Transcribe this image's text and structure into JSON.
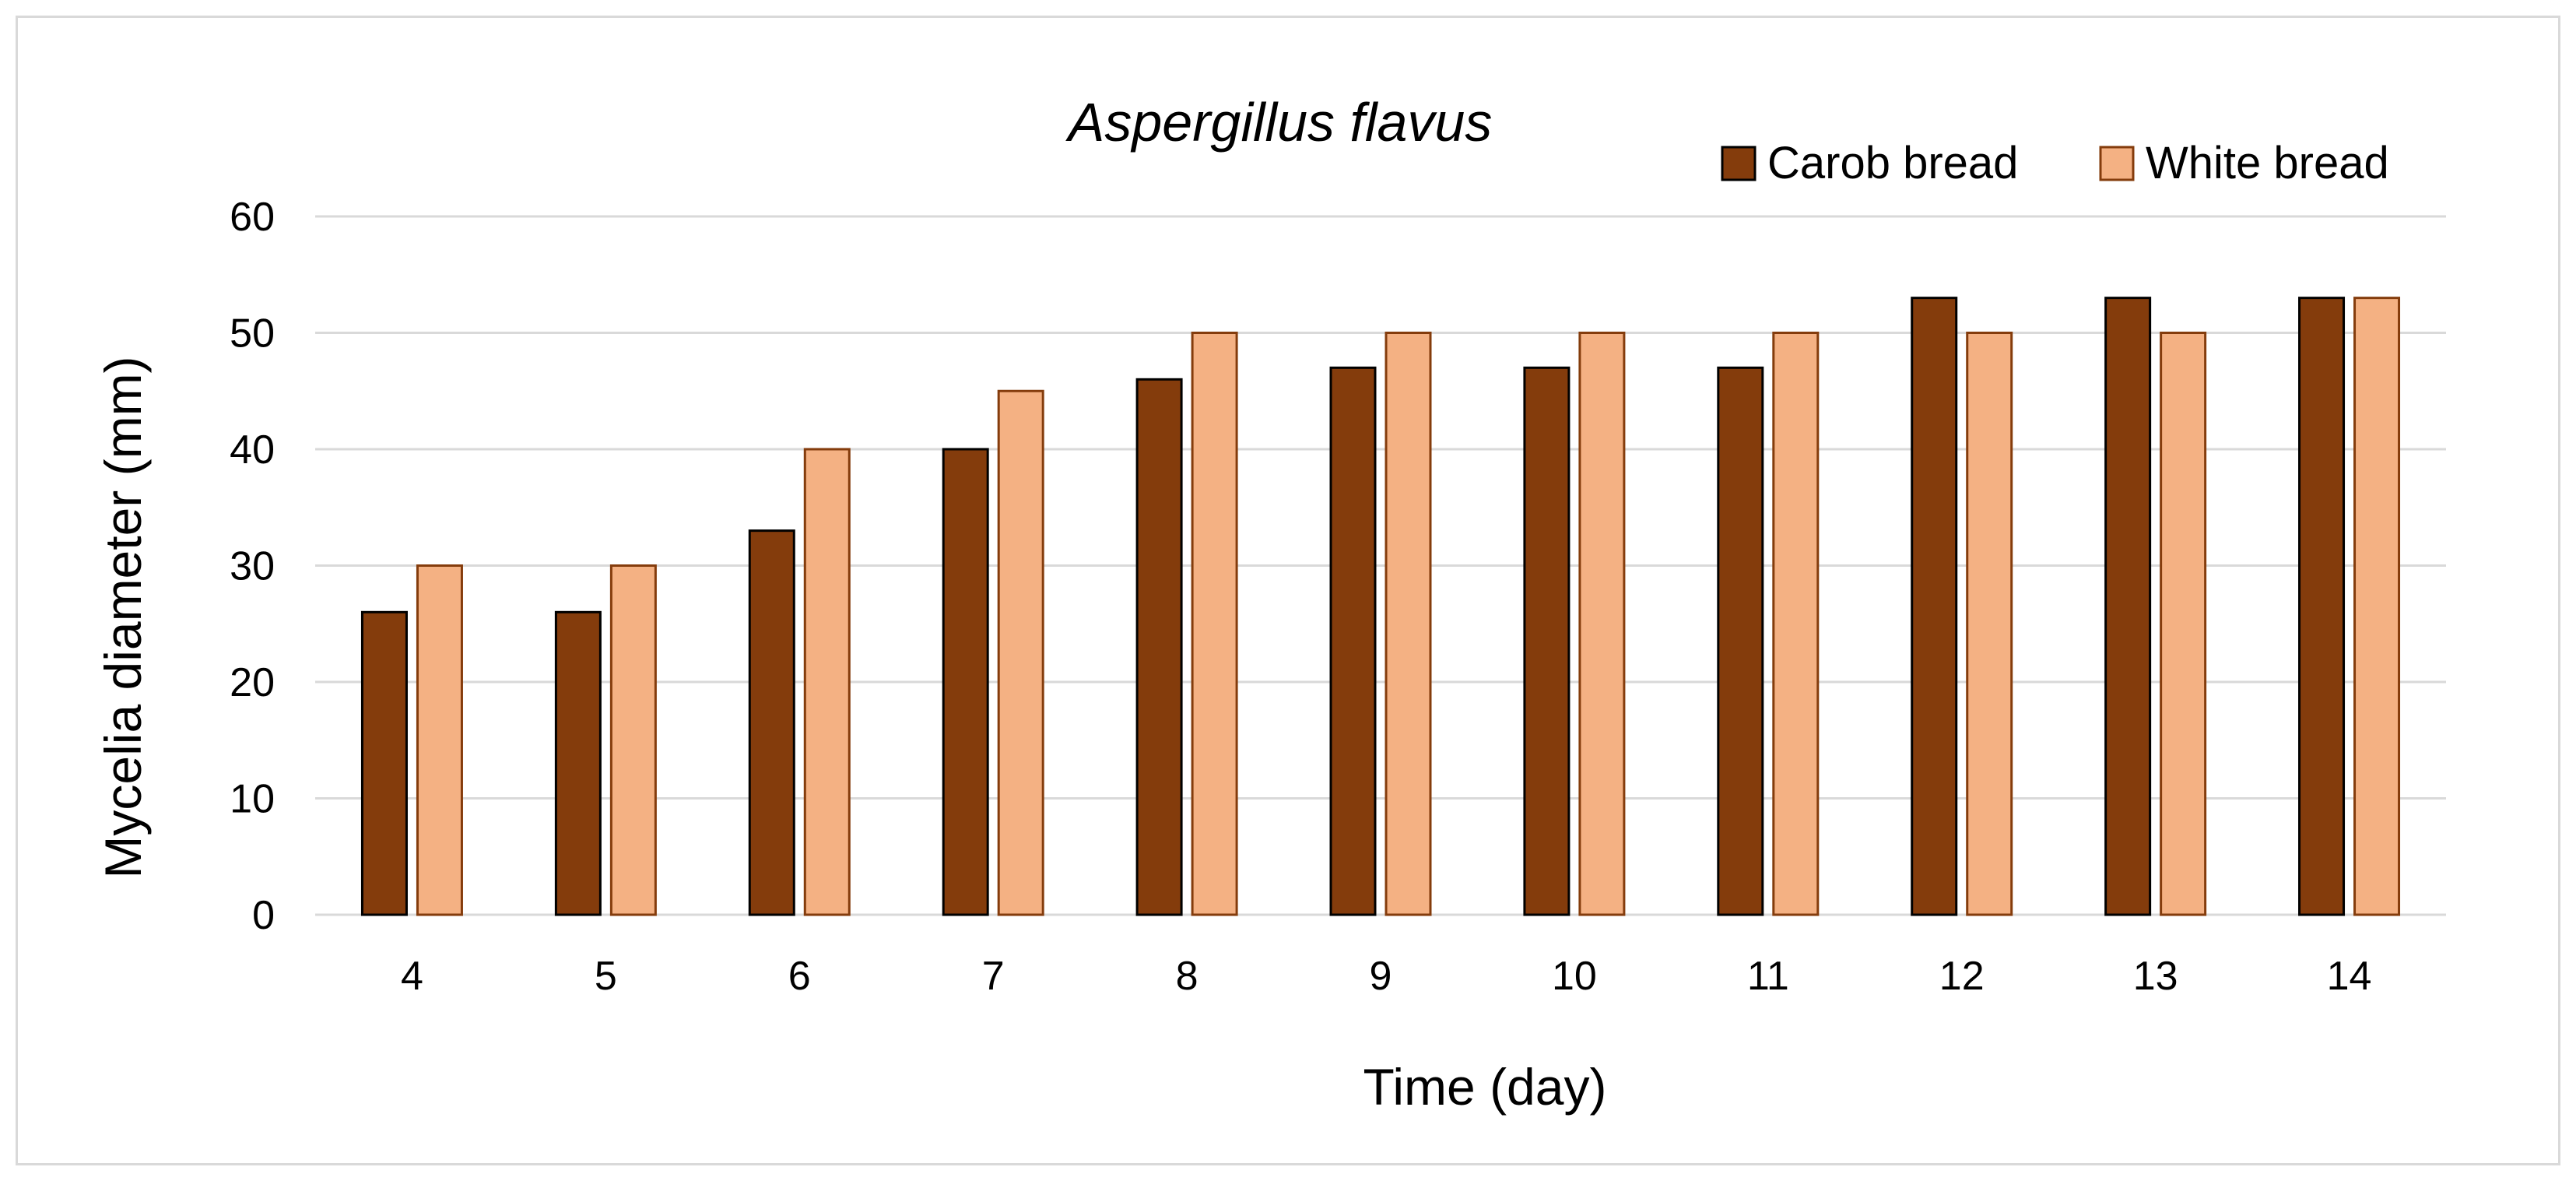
{
  "chart_data": {
    "type": "bar",
    "title": "Aspergillus flavus",
    "xlabel": "Time (day)",
    "ylabel": "Mycelia diameter (mm)",
    "ylim": [
      0,
      60
    ],
    "yticks": [
      0,
      10,
      20,
      30,
      40,
      50,
      60
    ],
    "categories": [
      "4",
      "5",
      "6",
      "7",
      "8",
      "9",
      "10",
      "11",
      "12",
      "13",
      "14"
    ],
    "series": [
      {
        "name": "Carob bread",
        "color": "#843c0c",
        "values": [
          26,
          26,
          33,
          40,
          46,
          47,
          47,
          47,
          53,
          53,
          53
        ]
      },
      {
        "name": "White bread",
        "color": "#f4b183",
        "values": [
          30,
          30,
          40,
          45,
          50,
          50,
          50,
          50,
          50,
          50,
          53
        ]
      }
    ],
    "grid": true,
    "legend": "top-right"
  }
}
